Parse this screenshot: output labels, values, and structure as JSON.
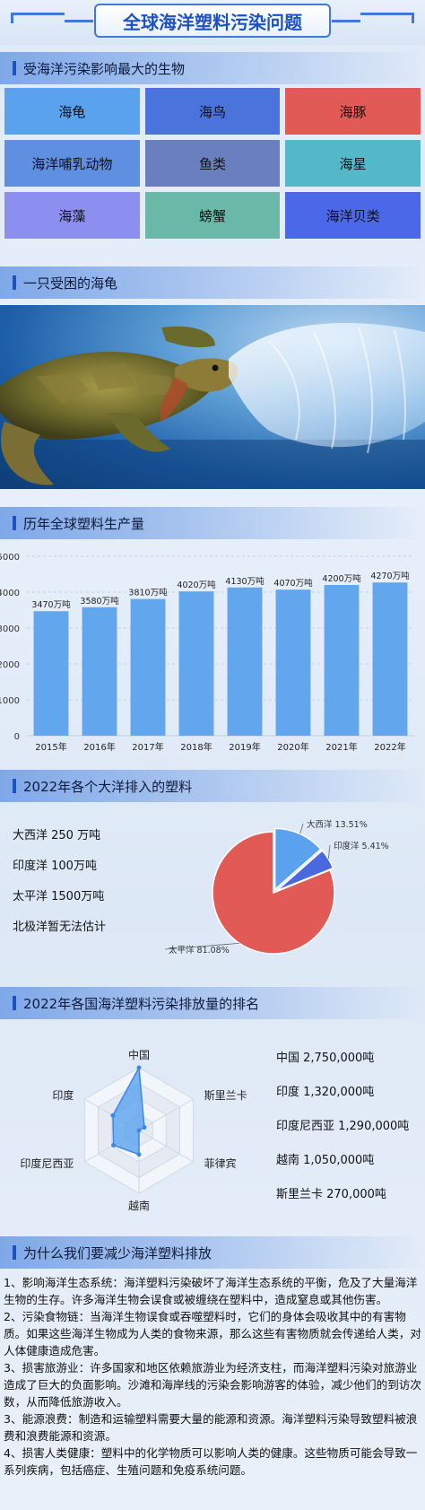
{
  "page": {
    "title": "全球海洋塑料污染问题"
  },
  "section1": {
    "heading": "受海洋污染影响最大的生物",
    "cells": [
      {
        "label": "海龟",
        "color": "#5aa2ee"
      },
      {
        "label": "海鸟",
        "color": "#4a74dc"
      },
      {
        "label": "海豚",
        "color": "#e15a55"
      },
      {
        "label": "海洋哺乳动物",
        "color": "#5e8fe0"
      },
      {
        "label": "鱼类",
        "color": "#6a7fc0"
      },
      {
        "label": "海星",
        "color": "#55b8c9"
      },
      {
        "label": "海藻",
        "color": "#8c8ef0"
      },
      {
        "label": "螃蟹",
        "color": "#6ab8a8"
      },
      {
        "label": "海洋贝类",
        "color": "#4a68e8"
      }
    ]
  },
  "section2": {
    "heading": "一只受困的海龟"
  },
  "section3": {
    "heading": "历年全球塑料生产量"
  },
  "section4": {
    "heading": "2022年各个大洋排入的塑料",
    "legend": [
      "大西洋 250 万吨",
      "印度洋 100万吨",
      "太平洋 1500万吨",
      "北极洋暂无法估计"
    ]
  },
  "section5": {
    "heading": "2022年各国海洋塑料污染排放量的排名",
    "ranking": [
      "中国 2,750,000吨",
      "印度 1,320,000吨",
      "印度尼西亚 1,290,000吨",
      "越南 1,050,000吨",
      "斯里兰卡 270,000吨"
    ]
  },
  "section6": {
    "heading": "为什么我们要减少海洋塑料排放",
    "paragraphs": [
      "1、影响海洋生态系统：海洋塑料污染破坏了海洋生态系统的平衡，危及了大量海洋生物的生存。许多海洋生物会误食或被缠绕在塑料中，造成窒息或其他伤害。",
      "2、污染食物链：当海洋生物误食或吞噬塑料时，它们的身体会吸收其中的有害物质。如果这些海洋生物成为人类的食物来源，那么这些有害物质就会传递给人类，对人体健康造成危害。",
      "3、损害旅游业：许多国家和地区依赖旅游业为经济支柱，而海洋塑料污染对旅游业造成了巨大的负面影响。沙滩和海岸线的污染会影响游客的体验，减少他们的到访次数，从而降低旅游收入。",
      "3、能源浪费：制造和运输塑料需要大量的能源和资源。海洋塑料污染导致塑料被浪费和浪费能源和资源。",
      "4、损害人类健康：塑料中的化学物质可以影响人类的健康。这些物质可能会导致一系列疾病，包括癌症、生殖问题和免疫系统问题。"
    ]
  },
  "chart_data": [
    {
      "type": "bar",
      "categories": [
        "2015年",
        "2016年",
        "2017年",
        "2018年",
        "2019年",
        "2020年",
        "2021年",
        "2022年"
      ],
      "values": [
        3470,
        3580,
        3810,
        4020,
        4130,
        4070,
        4200,
        4270
      ],
      "data_labels": [
        "3470万吨",
        "3580万吨",
        "3810万吨",
        "4020万吨",
        "4130万吨",
        "4070万吨",
        "4200万吨",
        "4270万吨"
      ],
      "ylim": [
        0,
        5000
      ],
      "yticks": [
        "0",
        "1000",
        "2000",
        "3000",
        "4000",
        "5000"
      ],
      "color": "#62a6ee",
      "grid": true
    },
    {
      "type": "pie",
      "labels": [
        "大西洋",
        "印度洋",
        "太平洋"
      ],
      "values": [
        13.51,
        5.41,
        81.08
      ],
      "display_labels": [
        "大西洋 13.51%",
        "印度洋 5.41%",
        "太平洋 81.08%"
      ],
      "colors": [
        "#5aa2ee",
        "#4a68e0",
        "#e15a55"
      ]
    },
    {
      "type": "radar",
      "indicators": [
        "中国",
        "斯里兰卡",
        "菲律宾",
        "越南",
        "印度尼西亚",
        "印度"
      ],
      "values": [
        2750000,
        270000,
        0,
        1050000,
        1290000,
        1320000
      ],
      "max": 2750000,
      "color": "#5aa2ee"
    }
  ]
}
